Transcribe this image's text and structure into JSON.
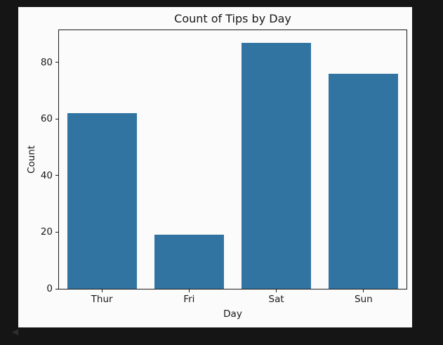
{
  "colors": {
    "window_background": "#151515",
    "figure_background": "#fbfbfb",
    "bar_color": "#3274a1",
    "axis_color": "#1a1a1a"
  },
  "decorations": {
    "back_arrow_glyph": "◀"
  },
  "chart_data": {
    "type": "bar",
    "title": "Count of Tips by Day",
    "xlabel": "Day",
    "ylabel": "Count",
    "categories": [
      "Thur",
      "Fri",
      "Sat",
      "Sun"
    ],
    "values": [
      62,
      19,
      87,
      76
    ],
    "yticks": [
      0,
      20,
      40,
      60,
      80
    ],
    "ylim": [
      0,
      91.35
    ],
    "bar_width_fraction": 0.8,
    "bar_color": "#3274a1",
    "grid": false,
    "legend_position": "none"
  }
}
